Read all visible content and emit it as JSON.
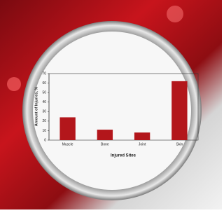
{
  "chart_data": {
    "type": "bar",
    "x_label": "Injured Sites",
    "y_label": "Amount of Injuries, %",
    "categories": [
      "Muscle",
      "Bone",
      "Joint",
      "Skin"
    ],
    "values": [
      24,
      11,
      8,
      62
    ],
    "color": "#b3161b",
    "ylim": [
      0,
      70
    ],
    "yticks": [
      0,
      10,
      20,
      30,
      40,
      50,
      60,
      70
    ]
  }
}
